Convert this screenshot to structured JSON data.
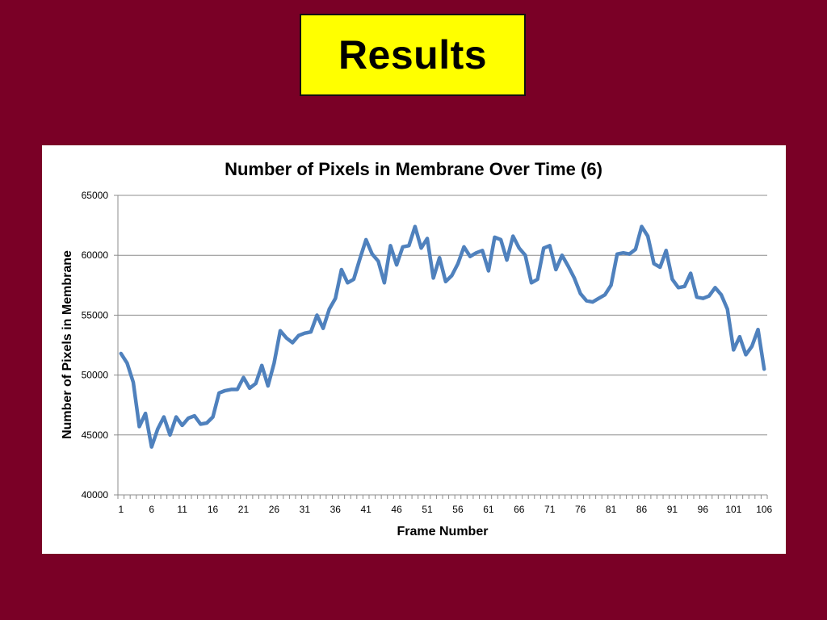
{
  "slide": {
    "title": "Results",
    "colors": {
      "background": "#7a0026",
      "title_box": "#ffff00"
    }
  },
  "chart_data": {
    "type": "line",
    "title": "Number of Pixels in Membrane Over Time (6)",
    "xlabel": "Frame Number",
    "ylabel": "Number of Pixels in Membrane",
    "ylim": [
      40000,
      65000
    ],
    "xlim": [
      1,
      106
    ],
    "y_ticks": [
      40000,
      45000,
      50000,
      55000,
      60000,
      65000
    ],
    "x_tick_labels": [
      "1",
      "6",
      "11",
      "16",
      "21",
      "26",
      "31",
      "36",
      "41",
      "46",
      "51",
      "56",
      "61",
      "66",
      "71",
      "76",
      "81",
      "86",
      "91",
      "96",
      "101",
      "106"
    ],
    "grid": true,
    "legend": "none",
    "series": [
      {
        "color": "#4f81bd",
        "x": [
          1,
          2,
          3,
          4,
          5,
          6,
          7,
          8,
          9,
          10,
          11,
          12,
          13,
          14,
          15,
          16,
          17,
          18,
          19,
          20,
          21,
          22,
          23,
          24,
          25,
          26,
          27,
          28,
          29,
          30,
          31,
          32,
          33,
          34,
          35,
          36,
          37,
          38,
          39,
          40,
          41,
          42,
          43,
          44,
          45,
          46,
          47,
          48,
          49,
          50,
          51,
          52,
          53,
          54,
          55,
          56,
          57,
          58,
          59,
          60,
          61,
          62,
          63,
          64,
          65,
          66,
          67,
          68,
          69,
          70,
          71,
          72,
          73,
          74,
          75,
          76,
          77,
          78,
          79,
          80,
          81,
          82,
          83,
          84,
          85,
          86,
          87,
          88,
          89,
          90,
          91,
          92,
          93,
          94,
          95,
          96,
          97,
          98,
          99,
          100,
          101,
          102,
          103,
          104,
          105,
          106
        ],
        "values": [
          51800,
          51000,
          49400,
          45700,
          46800,
          44000,
          45500,
          46500,
          45000,
          46500,
          45800,
          46400,
          46600,
          45900,
          46000,
          46500,
          48500,
          48700,
          48800,
          48800,
          49800,
          48900,
          49300,
          50800,
          49100,
          51000,
          53700,
          53100,
          52700,
          53300,
          53500,
          53600,
          55000,
          53900,
          55500,
          56400,
          58800,
          57700,
          58000,
          59700,
          61300,
          60100,
          59500,
          57700,
          60800,
          59200,
          60700,
          60800,
          62400,
          60600,
          61400,
          58100,
          59800,
          57800,
          58300,
          59300,
          60700,
          59900,
          60200,
          60400,
          58700,
          61500,
          61300,
          59600,
          61600,
          60600,
          60000,
          57700,
          58000,
          60600,
          60800,
          58800,
          60000,
          59100,
          58100,
          56800,
          56200,
          56100,
          56400,
          56700,
          57500,
          60100,
          60200,
          60100,
          60500,
          62400,
          61600,
          59300,
          59000,
          60400,
          58000,
          57300,
          57400,
          58500,
          56500,
          56400,
          56600,
          57300,
          56700,
          55500,
          52100,
          53200,
          51700,
          52400,
          53800,
          50500
        ]
      }
    ]
  }
}
